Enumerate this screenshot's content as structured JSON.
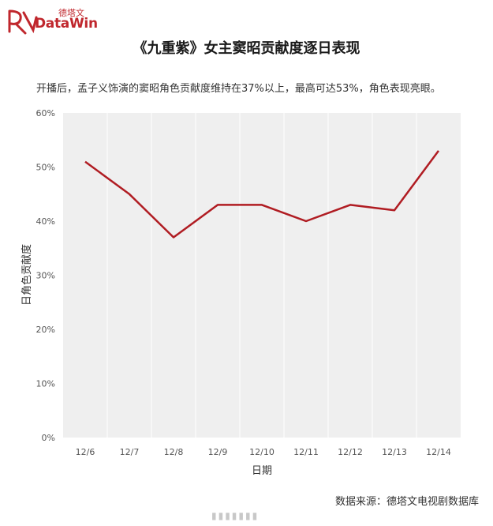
{
  "logo": {
    "cn": "德塔文",
    "en": "DataWin"
  },
  "header": {
    "title": "《九重紫》女主窦昭贡献度逐日表现",
    "subtitle": "开播后，孟子义饰演的窦昭角色贡献度维持在37%以上，最高可达53%，角色表现亮眼。"
  },
  "footer": {
    "source": "数据来源：德塔文电视剧数据库"
  },
  "colors": {
    "line": "#b01c22",
    "plot_bg": "#efefef",
    "brand": "#c0272d"
  },
  "chart_data": {
    "type": "line",
    "categories": [
      "12/6",
      "12/7",
      "12/8",
      "12/9",
      "12/10",
      "12/11",
      "12/12",
      "12/13",
      "12/14"
    ],
    "series": [
      {
        "values": [
          51,
          45,
          37,
          43,
          43,
          40,
          43,
          42,
          53
        ]
      }
    ],
    "xlabel": "日期",
    "ylabel": "日角色贡献度",
    "ylim": [
      0,
      60
    ],
    "yticks": [
      "0%",
      "10%",
      "20%",
      "30%",
      "40%",
      "50%",
      "60%"
    ],
    "grid": "vertical",
    "legend": "none"
  }
}
